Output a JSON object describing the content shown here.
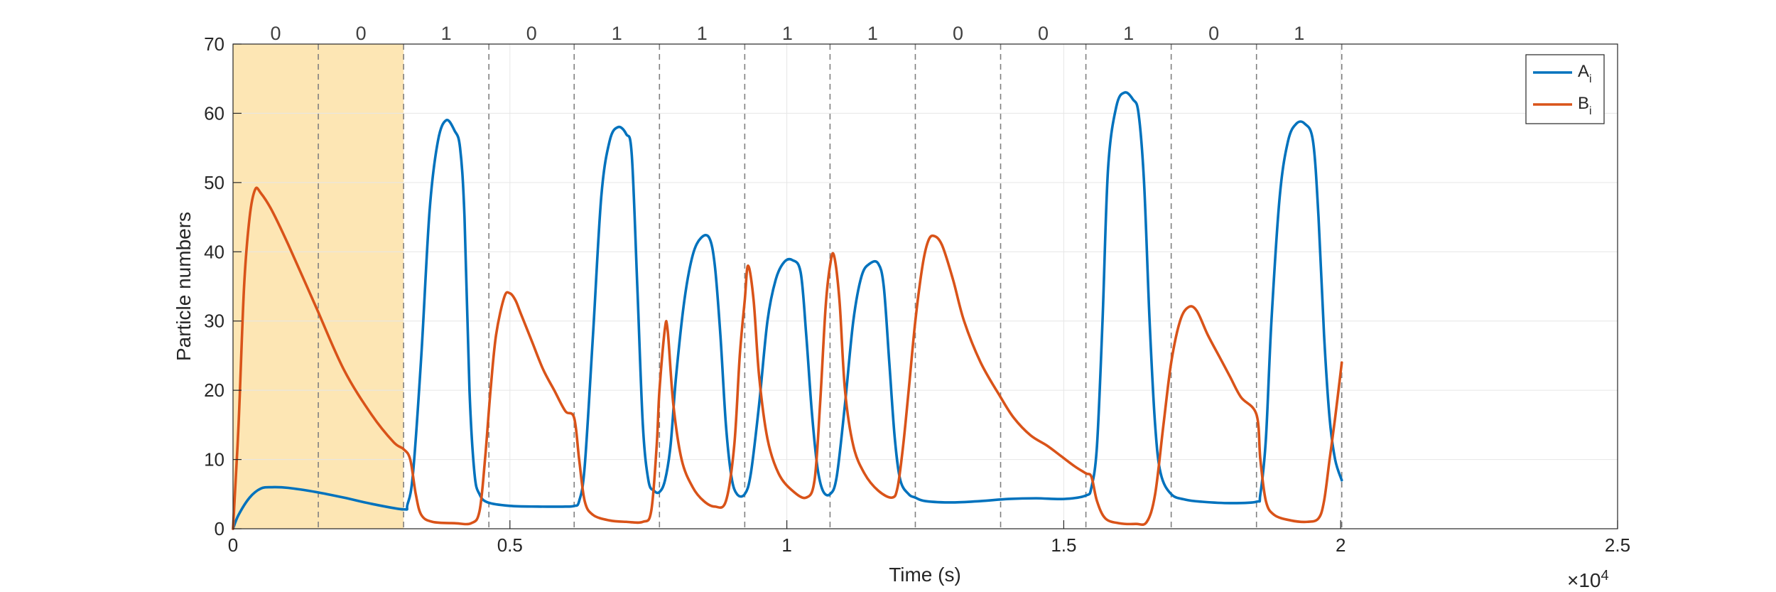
{
  "chart_data": {
    "type": "line",
    "xlabel": "Time (s)",
    "ylabel": "Particle numbers",
    "x_exponent_label": "×10",
    "x_exponent_power": "4",
    "xlim": [
      0,
      25000
    ],
    "ylim": [
      0,
      70
    ],
    "x_ticks": [
      0,
      5000,
      10000,
      15000,
      20000,
      25000
    ],
    "x_tick_labels": [
      "0",
      "0.5",
      "1",
      "1.5",
      "2",
      "2.5"
    ],
    "y_ticks": [
      0,
      10,
      20,
      30,
      40,
      50,
      60,
      70
    ],
    "y_tick_labels": [
      "0",
      "10",
      "20",
      "30",
      "40",
      "50",
      "60",
      "70"
    ],
    "grid": true,
    "legend_position": "top-right",
    "highlight_region": {
      "x": [
        0,
        3080
      ],
      "color": "#fde6b4"
    },
    "bit_interval_boundaries": [
      1540,
      3080,
      4620,
      6160,
      7700,
      9240,
      10780,
      12320,
      13860,
      15400,
      16940,
      18480,
      20020
    ],
    "bits": [
      "0",
      "0",
      "1",
      "0",
      "1",
      "1",
      "1",
      "1",
      "0",
      "0",
      "1",
      "0",
      "1"
    ],
    "series": [
      {
        "name": "A",
        "subscript": "i",
        "color": "#0072bd",
        "points": [
          [
            0,
            0
          ],
          [
            100,
            2
          ],
          [
            300,
            4.5
          ],
          [
            500,
            5.8
          ],
          [
            700,
            6
          ],
          [
            1000,
            5.9
          ],
          [
            1500,
            5.3
          ],
          [
            2000,
            4.5
          ],
          [
            2500,
            3.6
          ],
          [
            3080,
            2.8
          ],
          [
            3150,
            3.5
          ],
          [
            3250,
            8
          ],
          [
            3400,
            25
          ],
          [
            3550,
            46
          ],
          [
            3700,
            56
          ],
          [
            3850,
            59
          ],
          [
            4000,
            57.5
          ],
          [
            4100,
            55
          ],
          [
            4180,
            45
          ],
          [
            4270,
            20
          ],
          [
            4360,
            8
          ],
          [
            4450,
            5
          ],
          [
            4600,
            3.8
          ],
          [
            5000,
            3.3
          ],
          [
            5500,
            3.2
          ],
          [
            6000,
            3.2
          ],
          [
            6160,
            3.3
          ],
          [
            6250,
            4
          ],
          [
            6350,
            9
          ],
          [
            6500,
            28
          ],
          [
            6650,
            48
          ],
          [
            6800,
            56
          ],
          [
            6950,
            58
          ],
          [
            7100,
            57
          ],
          [
            7200,
            54
          ],
          [
            7300,
            35
          ],
          [
            7400,
            15
          ],
          [
            7500,
            7
          ],
          [
            7600,
            5.5
          ],
          [
            7700,
            5.3
          ],
          [
            7800,
            7
          ],
          [
            7900,
            12
          ],
          [
            8000,
            22
          ],
          [
            8150,
            33
          ],
          [
            8300,
            39.5
          ],
          [
            8450,
            42
          ],
          [
            8600,
            42
          ],
          [
            8700,
            38
          ],
          [
            8800,
            28
          ],
          [
            8900,
            15
          ],
          [
            9000,
            7.5
          ],
          [
            9100,
            5
          ],
          [
            9240,
            5
          ],
          [
            9350,
            8
          ],
          [
            9500,
            18
          ],
          [
            9650,
            30
          ],
          [
            9800,
            36
          ],
          [
            9950,
            38.5
          ],
          [
            10100,
            38.8
          ],
          [
            10250,
            37
          ],
          [
            10350,
            28
          ],
          [
            10450,
            17
          ],
          [
            10550,
            9
          ],
          [
            10650,
            5.5
          ],
          [
            10780,
            5
          ],
          [
            10900,
            7.5
          ],
          [
            11050,
            18
          ],
          [
            11200,
            30
          ],
          [
            11350,
            36.5
          ],
          [
            11500,
            38.3
          ],
          [
            11650,
            38.3
          ],
          [
            11750,
            35
          ],
          [
            11850,
            24
          ],
          [
            11950,
            13
          ],
          [
            12050,
            7
          ],
          [
            12200,
            5
          ],
          [
            12320,
            4.5
          ],
          [
            12500,
            4
          ],
          [
            13000,
            3.8
          ],
          [
            13500,
            4
          ],
          [
            14000,
            4.3
          ],
          [
            14500,
            4.4
          ],
          [
            15000,
            4.3
          ],
          [
            15400,
            4.8
          ],
          [
            15500,
            6
          ],
          [
            15600,
            12
          ],
          [
            15700,
            30
          ],
          [
            15800,
            52
          ],
          [
            15950,
            61
          ],
          [
            16100,
            63
          ],
          [
            16250,
            62
          ],
          [
            16350,
            60
          ],
          [
            16450,
            50
          ],
          [
            16550,
            30
          ],
          [
            16650,
            15
          ],
          [
            16750,
            8
          ],
          [
            16940,
            5
          ],
          [
            17200,
            4.2
          ],
          [
            17500,
            3.9
          ],
          [
            18000,
            3.7
          ],
          [
            18480,
            3.9
          ],
          [
            18550,
            5
          ],
          [
            18650,
            13
          ],
          [
            18750,
            30
          ],
          [
            18900,
            48
          ],
          [
            19050,
            56
          ],
          [
            19200,
            58.5
          ],
          [
            19350,
            58.5
          ],
          [
            19500,
            56
          ],
          [
            19600,
            45
          ],
          [
            19700,
            28
          ],
          [
            19800,
            16
          ],
          [
            19900,
            10
          ],
          [
            20020,
            7
          ]
        ]
      },
      {
        "name": "B",
        "subscript": "i",
        "color": "#d95319",
        "points": [
          [
            0,
            0
          ],
          [
            100,
            15
          ],
          [
            200,
            35
          ],
          [
            300,
            45
          ],
          [
            400,
            49
          ],
          [
            500,
            48.5
          ],
          [
            700,
            46
          ],
          [
            1000,
            41
          ],
          [
            1500,
            32
          ],
          [
            2000,
            23
          ],
          [
            2500,
            16.5
          ],
          [
            2900,
            12.5
          ],
          [
            3080,
            11.5
          ],
          [
            3200,
            10
          ],
          [
            3300,
            5
          ],
          [
            3400,
            2
          ],
          [
            3600,
            1
          ],
          [
            4000,
            0.8
          ],
          [
            4300,
            0.8
          ],
          [
            4450,
            2.5
          ],
          [
            4550,
            10
          ],
          [
            4650,
            20
          ],
          [
            4750,
            28
          ],
          [
            4900,
            33.5
          ],
          [
            5000,
            34
          ],
          [
            5100,
            33
          ],
          [
            5200,
            31
          ],
          [
            5400,
            27
          ],
          [
            5600,
            23
          ],
          [
            5800,
            20
          ],
          [
            6000,
            17
          ],
          [
            6160,
            16
          ],
          [
            6250,
            10
          ],
          [
            6350,
            4
          ],
          [
            6500,
            2
          ],
          [
            6800,
            1.2
          ],
          [
            7100,
            1
          ],
          [
            7400,
            1
          ],
          [
            7550,
            2.5
          ],
          [
            7650,
            12
          ],
          [
            7700,
            20
          ],
          [
            7800,
            29
          ],
          [
            7850,
            28.5
          ],
          [
            7950,
            18
          ],
          [
            8100,
            10
          ],
          [
            8300,
            6
          ],
          [
            8500,
            4
          ],
          [
            8700,
            3.2
          ],
          [
            8900,
            4
          ],
          [
            9050,
            12
          ],
          [
            9150,
            25
          ],
          [
            9240,
            33
          ],
          [
            9300,
            38
          ],
          [
            9400,
            33
          ],
          [
            9500,
            22
          ],
          [
            9650,
            13
          ],
          [
            9850,
            8
          ],
          [
            10100,
            5.5
          ],
          [
            10350,
            4.5
          ],
          [
            10500,
            7
          ],
          [
            10600,
            18
          ],
          [
            10700,
            32
          ],
          [
            10780,
            38
          ],
          [
            10850,
            39.5
          ],
          [
            10950,
            33
          ],
          [
            11050,
            20
          ],
          [
            11200,
            12
          ],
          [
            11400,
            8
          ],
          [
            11650,
            5.5
          ],
          [
            11900,
            4.5
          ],
          [
            12000,
            6
          ],
          [
            12100,
            12
          ],
          [
            12200,
            20
          ],
          [
            12320,
            30
          ],
          [
            12450,
            38
          ],
          [
            12550,
            41.5
          ],
          [
            12650,
            42.3
          ],
          [
            12800,
            41
          ],
          [
            13000,
            36
          ],
          [
            13200,
            30
          ],
          [
            13500,
            24
          ],
          [
            13860,
            19
          ],
          [
            14100,
            16
          ],
          [
            14400,
            13.5
          ],
          [
            14700,
            12
          ],
          [
            14950,
            10.5
          ],
          [
            15200,
            9
          ],
          [
            15400,
            8
          ],
          [
            15500,
            7.5
          ],
          [
            15600,
            4
          ],
          [
            15750,
            1.5
          ],
          [
            16000,
            0.8
          ],
          [
            16300,
            0.7
          ],
          [
            16500,
            1
          ],
          [
            16650,
            5
          ],
          [
            16800,
            15
          ],
          [
            16940,
            24
          ],
          [
            17100,
            30
          ],
          [
            17250,
            32
          ],
          [
            17400,
            31.5
          ],
          [
            17600,
            28
          ],
          [
            17800,
            25
          ],
          [
            18000,
            22
          ],
          [
            18200,
            19
          ],
          [
            18480,
            16.5
          ],
          [
            18550,
            10
          ],
          [
            18650,
            4
          ],
          [
            18800,
            2
          ],
          [
            19100,
            1.2
          ],
          [
            19400,
            1
          ],
          [
            19600,
            1.5
          ],
          [
            19700,
            4
          ],
          [
            19800,
            10
          ],
          [
            19900,
            16
          ],
          [
            20020,
            24
          ]
        ]
      }
    ]
  }
}
